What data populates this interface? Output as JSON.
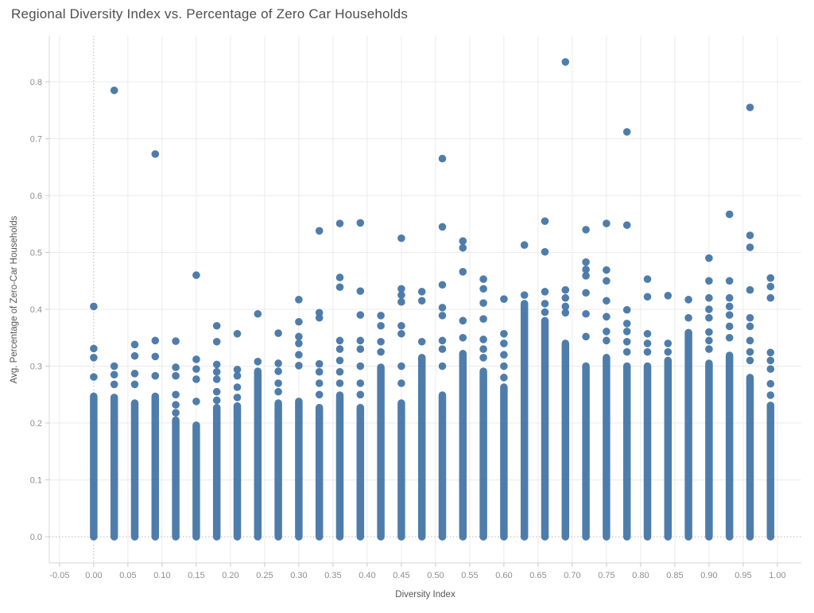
{
  "title": "Regional Diversity Index vs. Percentage of Zero Car Households",
  "chart_data": {
    "type": "scatter",
    "title": "Regional Diversity Index vs. Percentage of Zero Car Households",
    "xlabel": "Diversity Index",
    "ylabel": "Avg. Percentage of Zero-Car Households",
    "xlim": [
      -0.065,
      1.035
    ],
    "ylim": [
      -0.046,
      0.881
    ],
    "grid": true,
    "legend": "none",
    "marker_color": "#4878a8",
    "grid_color": "#ebebeb",
    "zero_line_color": "#b8b8b8",
    "tick_label_color": "#8e8e8e",
    "x_ticks": [
      -0.05,
      0.0,
      0.05,
      0.1,
      0.15,
      0.2,
      0.25,
      0.3,
      0.35,
      0.4,
      0.45,
      0.5,
      0.55,
      0.6,
      0.65,
      0.7,
      0.75,
      0.8,
      0.85,
      0.9,
      0.95,
      1.0
    ],
    "x_tick_labels": [
      "-0.05",
      "0.00",
      "0.05",
      "0.10",
      "0.15",
      "0.20",
      "0.25",
      "0.30",
      "0.35",
      "0.40",
      "0.45",
      "0.50",
      "0.55",
      "0.60",
      "0.65",
      "0.70",
      "0.75",
      "0.80",
      "0.85",
      "0.90",
      "0.95",
      "1.00"
    ],
    "y_ticks": [
      0.0,
      0.1,
      0.2,
      0.3,
      0.4,
      0.5,
      0.6,
      0.7,
      0.8
    ],
    "y_tick_labels": [
      "0.0",
      "0.1",
      "0.2",
      "0.3",
      "0.4",
      "0.5",
      "0.6",
      "0.7",
      "0.8"
    ],
    "description": "Vertical dense stacks of overlapping points at each Diversity Index value (step 0.03). Each column is continuous from y=0 up to dense_max, with scattered individual points (upper_points) above it.",
    "columns": [
      {
        "x": 0.0,
        "dense_max": 0.247,
        "upper_points": [
          0.405,
          0.331,
          0.315,
          0.281
        ]
      },
      {
        "x": 0.03,
        "dense_max": 0.245,
        "upper_points": [
          0.785,
          0.3,
          0.285,
          0.268
        ]
      },
      {
        "x": 0.06,
        "dense_max": 0.235,
        "upper_points": [
          0.338,
          0.318,
          0.287,
          0.268
        ]
      },
      {
        "x": 0.09,
        "dense_max": 0.247,
        "upper_points": [
          0.673,
          0.345,
          0.317,
          0.283
        ]
      },
      {
        "x": 0.12,
        "dense_max": 0.205,
        "upper_points": [
          0.344,
          0.298,
          0.283,
          0.25,
          0.232,
          0.218
        ]
      },
      {
        "x": 0.15,
        "dense_max": 0.196,
        "upper_points": [
          0.46,
          0.312,
          0.295,
          0.277,
          0.238
        ]
      },
      {
        "x": 0.18,
        "dense_max": 0.227,
        "upper_points": [
          0.371,
          0.343,
          0.303,
          0.29,
          0.277,
          0.255,
          0.24
        ]
      },
      {
        "x": 0.21,
        "dense_max": 0.23,
        "upper_points": [
          0.357,
          0.294,
          0.283,
          0.263,
          0.245
        ]
      },
      {
        "x": 0.24,
        "dense_max": 0.291,
        "upper_points": [
          0.392,
          0.308
        ]
      },
      {
        "x": 0.27,
        "dense_max": 0.235,
        "upper_points": [
          0.358,
          0.305,
          0.291,
          0.27,
          0.255
        ]
      },
      {
        "x": 0.3,
        "dense_max": 0.238,
        "upper_points": [
          0.417,
          0.378,
          0.352,
          0.34,
          0.32,
          0.301
        ]
      },
      {
        "x": 0.33,
        "dense_max": 0.227,
        "upper_points": [
          0.538,
          0.394,
          0.385,
          0.304,
          0.29,
          0.27,
          0.25
        ]
      },
      {
        "x": 0.36,
        "dense_max": 0.249,
        "upper_points": [
          0.551,
          0.456,
          0.439,
          0.345,
          0.33,
          0.31,
          0.29,
          0.27
        ]
      },
      {
        "x": 0.39,
        "dense_max": 0.227,
        "upper_points": [
          0.552,
          0.432,
          0.39,
          0.345,
          0.33,
          0.3,
          0.27,
          0.25
        ]
      },
      {
        "x": 0.42,
        "dense_max": 0.298,
        "upper_points": [
          0.389,
          0.371,
          0.343,
          0.325
        ]
      },
      {
        "x": 0.45,
        "dense_max": 0.235,
        "upper_points": [
          0.525,
          0.436,
          0.425,
          0.413,
          0.371,
          0.357,
          0.3,
          0.27
        ]
      },
      {
        "x": 0.48,
        "dense_max": 0.315,
        "upper_points": [
          0.431,
          0.415,
          0.343
        ]
      },
      {
        "x": 0.51,
        "dense_max": 0.249,
        "upper_points": [
          0.665,
          0.545,
          0.443,
          0.403,
          0.389,
          0.345,
          0.33,
          0.3
        ]
      },
      {
        "x": 0.54,
        "dense_max": 0.322,
        "upper_points": [
          0.52,
          0.508,
          0.466,
          0.38,
          0.35
        ]
      },
      {
        "x": 0.57,
        "dense_max": 0.291,
        "upper_points": [
          0.453,
          0.436,
          0.411,
          0.383,
          0.347,
          0.33,
          0.315
        ]
      },
      {
        "x": 0.6,
        "dense_max": 0.263,
        "upper_points": [
          0.418,
          0.357,
          0.34,
          0.32,
          0.3,
          0.28
        ]
      },
      {
        "x": 0.63,
        "dense_max": 0.41,
        "upper_points": [
          0.513,
          0.425
        ]
      },
      {
        "x": 0.66,
        "dense_max": 0.38,
        "upper_points": [
          0.555,
          0.501,
          0.431,
          0.41,
          0.395
        ]
      },
      {
        "x": 0.69,
        "dense_max": 0.34,
        "upper_points": [
          0.835,
          0.434,
          0.42,
          0.405,
          0.394
        ]
      },
      {
        "x": 0.72,
        "dense_max": 0.3,
        "upper_points": [
          0.54,
          0.483,
          0.47,
          0.459,
          0.429,
          0.392,
          0.352
        ]
      },
      {
        "x": 0.75,
        "dense_max": 0.315,
        "upper_points": [
          0.551,
          0.469,
          0.45,
          0.415,
          0.387,
          0.361,
          0.345
        ]
      },
      {
        "x": 0.78,
        "dense_max": 0.3,
        "upper_points": [
          0.712,
          0.548,
          0.399,
          0.375,
          0.361,
          0.343,
          0.325
        ]
      },
      {
        "x": 0.81,
        "dense_max": 0.3,
        "upper_points": [
          0.453,
          0.422,
          0.357,
          0.34,
          0.325
        ]
      },
      {
        "x": 0.84,
        "dense_max": 0.31,
        "upper_points": [
          0.424,
          0.34,
          0.325
        ]
      },
      {
        "x": 0.87,
        "dense_max": 0.359,
        "upper_points": [
          0.417,
          0.385
        ]
      },
      {
        "x": 0.9,
        "dense_max": 0.305,
        "upper_points": [
          0.49,
          0.45,
          0.42,
          0.4,
          0.385,
          0.36,
          0.345,
          0.33
        ]
      },
      {
        "x": 0.93,
        "dense_max": 0.319,
        "upper_points": [
          0.567,
          0.45,
          0.42,
          0.405,
          0.39,
          0.37,
          0.35
        ]
      },
      {
        "x": 0.96,
        "dense_max": 0.28,
        "upper_points": [
          0.755,
          0.53,
          0.509,
          0.434,
          0.385,
          0.37,
          0.345,
          0.325,
          0.31
        ]
      },
      {
        "x": 0.99,
        "dense_max": 0.231,
        "upper_points": [
          0.455,
          0.44,
          0.42,
          0.324,
          0.31,
          0.295,
          0.269,
          0.249
        ]
      }
    ]
  }
}
